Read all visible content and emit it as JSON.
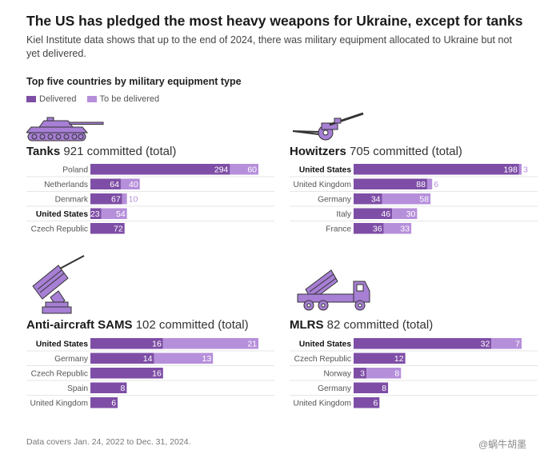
{
  "title": "The US has pledged the most heavy weapons for Ukraine, except for tanks",
  "subtitle": "Kiel Institute data shows that up to the end of 2024, there was military equipment allocated to Ukraine but not yet delivered.",
  "section_title": "Top five countries by military equipment type",
  "legend": {
    "delivered": "Delivered",
    "to_be_delivered": "To be delivered"
  },
  "colors": {
    "delivered": "#7e4ea6",
    "to_be_delivered": "#b68fdb",
    "icon": "#a77fd4",
    "icon_stroke": "#333333"
  },
  "footnote": "Data covers Jan. 24, 2022 to Dec. 31, 2024.",
  "watermark": "@蜗牛胡墨",
  "chart_data": [
    {
      "type": "bar",
      "name": "Tanks",
      "icon": "tank-icon",
      "heading": "Tanks",
      "committed": "921 committed (total)",
      "highlight": "United States",
      "max": 354,
      "categories": [
        "Poland",
        "Netherlands",
        "Denmark",
        "United States",
        "Czech Republic"
      ],
      "series": [
        {
          "name": "Delivered",
          "values": [
            294,
            64,
            67,
            23,
            72
          ]
        },
        {
          "name": "To be delivered",
          "values": [
            60,
            40,
            10,
            54,
            0
          ]
        }
      ]
    },
    {
      "type": "bar",
      "name": "Howitzers",
      "icon": "howitzer-icon",
      "heading": "Howitzers",
      "committed": "705 committed (total)",
      "highlight": "United States",
      "max": 201,
      "categories": [
        "United States",
        "United Kingdom",
        "Germany",
        "Italy",
        "France"
      ],
      "series": [
        {
          "name": "Delivered",
          "values": [
            198,
            88,
            34,
            46,
            36
          ]
        },
        {
          "name": "To be delivered",
          "values": [
            3,
            6,
            58,
            30,
            33
          ]
        }
      ]
    },
    {
      "type": "bar",
      "name": "Anti-aircraft SAMS",
      "icon": "missile-launcher-icon",
      "heading": "Anti-aircraft SAMS",
      "committed": "102 committed (total)",
      "highlight": "United States",
      "max": 37,
      "categories": [
        "United States",
        "Germany",
        "Czech Republic",
        "Spain",
        "United Kingdom"
      ],
      "series": [
        {
          "name": "Delivered",
          "values": [
            16,
            14,
            16,
            8,
            6
          ]
        },
        {
          "name": "To be delivered",
          "values": [
            21,
            13,
            0,
            0,
            0
          ]
        }
      ]
    },
    {
      "type": "bar",
      "name": "MLRS",
      "icon": "rocket-truck-icon",
      "heading": "MLRS",
      "committed": "82 committed (total)",
      "highlight": "United States",
      "max": 39,
      "categories": [
        "United States",
        "Czech Republic",
        "Norway",
        "Germany",
        "United Kingdom"
      ],
      "series": [
        {
          "name": "Delivered",
          "values": [
            32,
            12,
            3,
            8,
            6
          ]
        },
        {
          "name": "To be delivered",
          "values": [
            7,
            0,
            8,
            0,
            0
          ]
        }
      ]
    }
  ]
}
